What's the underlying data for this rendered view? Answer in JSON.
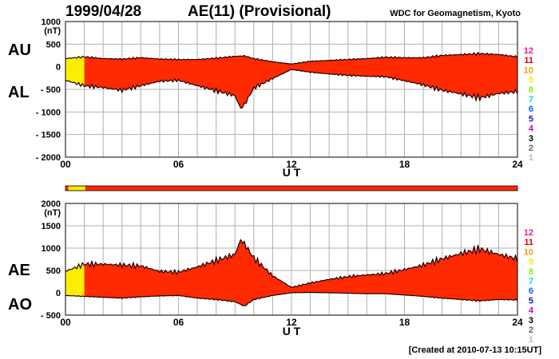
{
  "header": {
    "date": "1999/04/28",
    "title": "AE(11) (Provisional)",
    "organization": "WDC for Geomagnetism, Kyoto"
  },
  "footer": {
    "created": "[Created at 2010-07-13 10:15UT]"
  },
  "colors": {
    "fill_main": "#ff2a00",
    "fill_early": "#ffee00",
    "outline": "#1a0000",
    "grid": "#b0b0b0"
  },
  "station_scale": [
    {
      "label": "12",
      "color": "#ff1493"
    },
    {
      "label": "11",
      "color": "#e00000"
    },
    {
      "label": "10",
      "color": "#ff9900"
    },
    {
      "label": "9",
      "color": "#f0f000"
    },
    {
      "label": "8",
      "color": "#88ee00"
    },
    {
      "label": "7",
      "color": "#00dddd"
    },
    {
      "label": "6",
      "color": "#0066ff"
    },
    {
      "label": "5",
      "color": "#1a1aaa"
    },
    {
      "label": "4",
      "color": "#cc00cc"
    },
    {
      "label": "3",
      "color": "#000000"
    },
    {
      "label": "2",
      "color": "#666666"
    },
    {
      "label": "1",
      "color": "#bbbbbb"
    }
  ],
  "chart_data": [
    {
      "type": "area",
      "ylabel_unit": "(nT)",
      "xlabel": "U T",
      "side_labels": [
        "AU",
        "AL"
      ],
      "xlim": [
        0,
        24
      ],
      "ylim": [
        -2000,
        1000
      ],
      "y_ticks": [
        1000,
        500,
        0,
        -500,
        -1000,
        -1500,
        -2000
      ],
      "y_tick_labels": [
        "1000",
        "500",
        "0",
        "- 500",
        "- 1000",
        "- 1500",
        "- 2000"
      ],
      "x_ticks": [
        0,
        6,
        12,
        18,
        24
      ],
      "x_tick_labels": [
        "00",
        "06",
        "12",
        "18",
        "24"
      ],
      "grid": true,
      "series": [
        {
          "name": "AU",
          "x": [
            0,
            1,
            2,
            3,
            4,
            5,
            6,
            7,
            8,
            9,
            9.5,
            10,
            11,
            12,
            13,
            14,
            15,
            16,
            17,
            18,
            19,
            20,
            21,
            22,
            23,
            24
          ],
          "y": [
            180,
            220,
            180,
            170,
            200,
            170,
            160,
            160,
            190,
            230,
            240,
            180,
            110,
            60,
            120,
            140,
            160,
            180,
            210,
            200,
            200,
            250,
            270,
            290,
            270,
            220
          ]
        },
        {
          "name": "AL",
          "x": [
            0,
            1,
            2,
            3,
            4,
            5,
            6,
            7,
            8,
            9,
            9.3,
            9.5,
            10,
            11,
            12,
            13,
            14,
            15,
            16,
            17,
            18,
            19,
            20,
            21,
            22,
            23,
            24
          ],
          "y": [
            -300,
            -420,
            -460,
            -520,
            -420,
            -320,
            -300,
            -420,
            -530,
            -640,
            -920,
            -840,
            -470,
            -260,
            -60,
            -120,
            -160,
            -190,
            -210,
            -220,
            -310,
            -400,
            -520,
            -600,
            -690,
            -590,
            -550
          ]
        }
      ]
    },
    {
      "type": "area",
      "ylabel_unit": "(nT)",
      "xlabel": "U T",
      "side_labels": [
        "AE",
        "AO"
      ],
      "xlim": [
        0,
        24
      ],
      "ylim": [
        -500,
        2000
      ],
      "y_ticks": [
        2000,
        1500,
        1000,
        500,
        0,
        -500
      ],
      "y_tick_labels": [
        "2000",
        "1500",
        "1000",
        "500",
        "0",
        "- 500"
      ],
      "x_ticks": [
        0,
        6,
        12,
        18,
        24
      ],
      "x_tick_labels": [
        "00",
        "06",
        "12",
        "18",
        "24"
      ],
      "grid": true,
      "series": [
        {
          "name": "AE",
          "x": [
            0,
            1,
            2,
            3,
            4,
            5,
            6,
            7,
            8,
            9,
            9.3,
            9.5,
            10,
            11,
            12,
            13,
            14,
            15,
            16,
            17,
            18,
            19,
            20,
            21,
            22,
            23,
            24
          ],
          "y": [
            480,
            640,
            640,
            620,
            600,
            480,
            460,
            580,
            720,
            860,
            1180,
            1100,
            780,
            380,
            120,
            220,
            300,
            360,
            400,
            430,
            520,
            620,
            760,
            880,
            980,
            860,
            760
          ]
        },
        {
          "name": "AO",
          "x": [
            0,
            1,
            2,
            3,
            4,
            5,
            6,
            7,
            8,
            9,
            9.5,
            10,
            11,
            12,
            13,
            14,
            15,
            16,
            17,
            18,
            19,
            20,
            21,
            22,
            23,
            24
          ],
          "y": [
            -60,
            -80,
            -100,
            -120,
            -90,
            -70,
            -60,
            -120,
            -150,
            -200,
            -300,
            -150,
            -60,
            0,
            10,
            0,
            -10,
            -20,
            -20,
            -50,
            -80,
            -120,
            -150,
            -180,
            -150,
            -160
          ]
        }
      ]
    }
  ]
}
